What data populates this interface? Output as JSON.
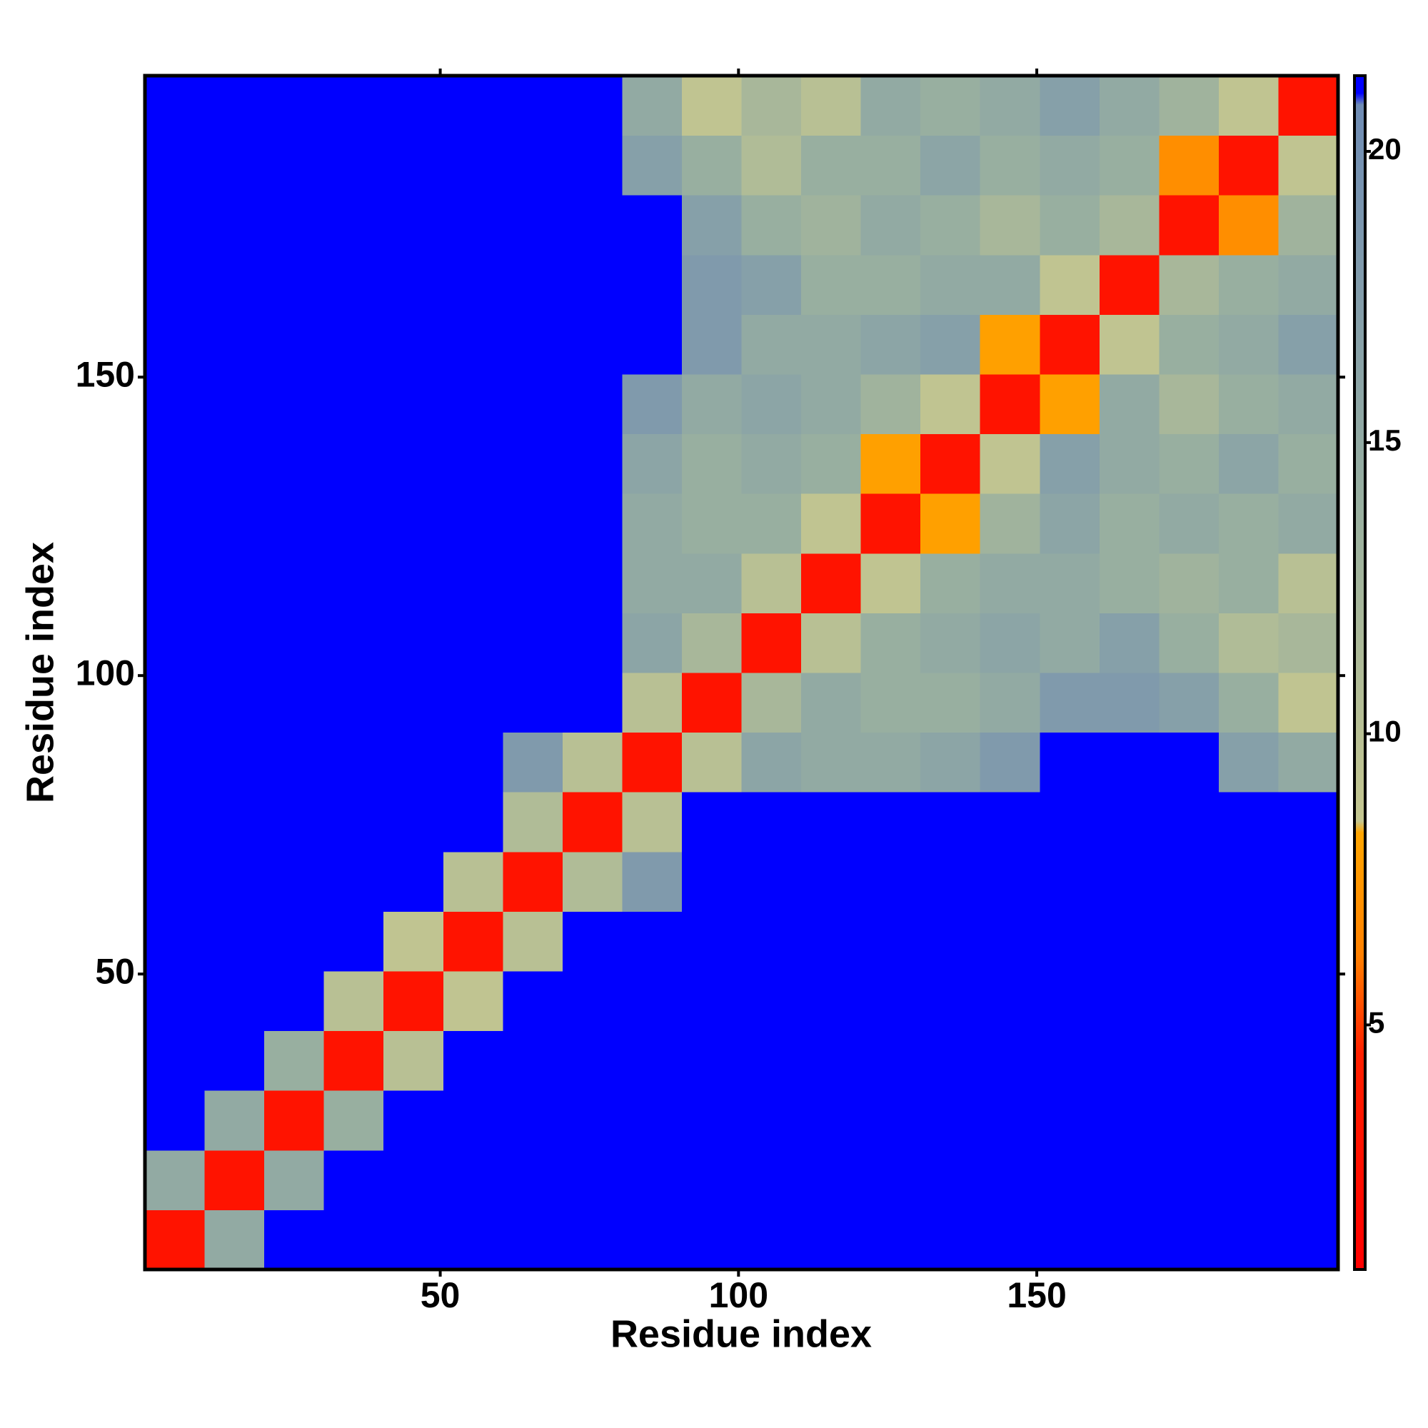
{
  "chart_data": {
    "type": "heatmap",
    "xlabel": "Residue index",
    "ylabel": "Residue index",
    "bins": [
      0.5,
      10.5,
      20.5,
      30.5,
      40.5,
      50.5,
      60.5,
      70.5,
      80.5,
      90.5,
      100.5,
      110.5,
      120.5,
      130.5,
      140.5,
      150.5,
      160.5,
      170.5,
      180.5,
      190.5,
      200.5
    ],
    "xlim": [
      0.5,
      200.5
    ],
    "ylim": [
      0.5,
      200.5
    ],
    "xticks": [
      50,
      100,
      150
    ],
    "yticks": [
      50,
      100,
      150
    ],
    "zlim": [
      0.8,
      21.3
    ],
    "zticks": [
      5,
      10,
      15,
      20
    ],
    "colorscale": [
      {
        "value": 0.8,
        "color": "#ff0000"
      },
      {
        "value": 4.5,
        "color": "#ff2000"
      },
      {
        "value": 6.2,
        "color": "#ff8000"
      },
      {
        "value": 8.3,
        "color": "#ffa500"
      },
      {
        "value": 8.5,
        "color": "#c4c690"
      },
      {
        "value": 14,
        "color": "#98afa0"
      },
      {
        "value": 20.8,
        "color": "#6f8cb4"
      },
      {
        "value": 21,
        "color": "#0000ff"
      },
      {
        "value": 21.3,
        "color": "#0000ff"
      }
    ],
    "z": [
      [
        3,
        15,
        21,
        21,
        21,
        21,
        21,
        21,
        21,
        21,
        21,
        21,
        21,
        21,
        21,
        21,
        21,
        21,
        21,
        21
      ],
      [
        15,
        3,
        15,
        21,
        21,
        21,
        21,
        21,
        21,
        21,
        21,
        21,
        21,
        21,
        21,
        21,
        21,
        21,
        21,
        21
      ],
      [
        21,
        15,
        3,
        14,
        21,
        21,
        21,
        21,
        21,
        21,
        21,
        21,
        21,
        21,
        21,
        21,
        21,
        21,
        21,
        21
      ],
      [
        21,
        21,
        14,
        3,
        10,
        21,
        21,
        21,
        21,
        21,
        21,
        21,
        21,
        21,
        21,
        21,
        21,
        21,
        21,
        21
      ],
      [
        21,
        21,
        21,
        10,
        3,
        9,
        21,
        21,
        21,
        21,
        21,
        21,
        21,
        21,
        21,
        21,
        21,
        21,
        21,
        21
      ],
      [
        21,
        21,
        21,
        21,
        9,
        3,
        10,
        21,
        21,
        21,
        21,
        21,
        21,
        21,
        21,
        21,
        21,
        21,
        21,
        21
      ],
      [
        21,
        21,
        21,
        21,
        21,
        10,
        3,
        11,
        18,
        21,
        21,
        21,
        21,
        21,
        21,
        21,
        21,
        21,
        21,
        21
      ],
      [
        21,
        21,
        21,
        21,
        21,
        21,
        11,
        3,
        10,
        21,
        21,
        21,
        21,
        21,
        21,
        21,
        21,
        21,
        21,
        21
      ],
      [
        21,
        21,
        21,
        21,
        21,
        21,
        18,
        10,
        3,
        10,
        16,
        15,
        15,
        16,
        18,
        21,
        21,
        21,
        17,
        15
      ],
      [
        21,
        21,
        21,
        21,
        21,
        21,
        21,
        21,
        10,
        3,
        12,
        15,
        14,
        14,
        15,
        18,
        18,
        17,
        14,
        9
      ],
      [
        21,
        21,
        21,
        21,
        21,
        21,
        21,
        21,
        16,
        12,
        3,
        10,
        14,
        15,
        16,
        15,
        17,
        14,
        11,
        12
      ],
      [
        21,
        21,
        21,
        21,
        21,
        21,
        21,
        21,
        15,
        15,
        10,
        3,
        9,
        14,
        15,
        15,
        14,
        13,
        14,
        10
      ],
      [
        21,
        21,
        21,
        21,
        21,
        21,
        21,
        21,
        15,
        14,
        14,
        9,
        3,
        8,
        13,
        16,
        14,
        15,
        14,
        15
      ],
      [
        21,
        21,
        21,
        21,
        21,
        21,
        21,
        21,
        16,
        14,
        15,
        14,
        8,
        3,
        9,
        17,
        15,
        14,
        16,
        14
      ],
      [
        21,
        21,
        21,
        21,
        21,
        21,
        21,
        21,
        18,
        15,
        16,
        15,
        13,
        9,
        3,
        8,
        15,
        12,
        14,
        15
      ],
      [
        21,
        21,
        21,
        21,
        21,
        21,
        21,
        21,
        21,
        18,
        15,
        15,
        16,
        17,
        8,
        3,
        9,
        14,
        15,
        17
      ],
      [
        21,
        21,
        21,
        21,
        21,
        21,
        21,
        21,
        21,
        18,
        17,
        14,
        14,
        15,
        15,
        9,
        3,
        12,
        14,
        15
      ],
      [
        21,
        21,
        21,
        21,
        21,
        21,
        21,
        21,
        21,
        17,
        14,
        13,
        15,
        14,
        12,
        14,
        12,
        3,
        7,
        13
      ],
      [
        21,
        21,
        21,
        21,
        21,
        21,
        21,
        21,
        17,
        14,
        11,
        14,
        14,
        16,
        14,
        15,
        14,
        7,
        3,
        9
      ],
      [
        21,
        21,
        21,
        21,
        21,
        21,
        21,
        21,
        15,
        9,
        12,
        10,
        15,
        14,
        15,
        17,
        15,
        13,
        9,
        3
      ]
    ]
  }
}
